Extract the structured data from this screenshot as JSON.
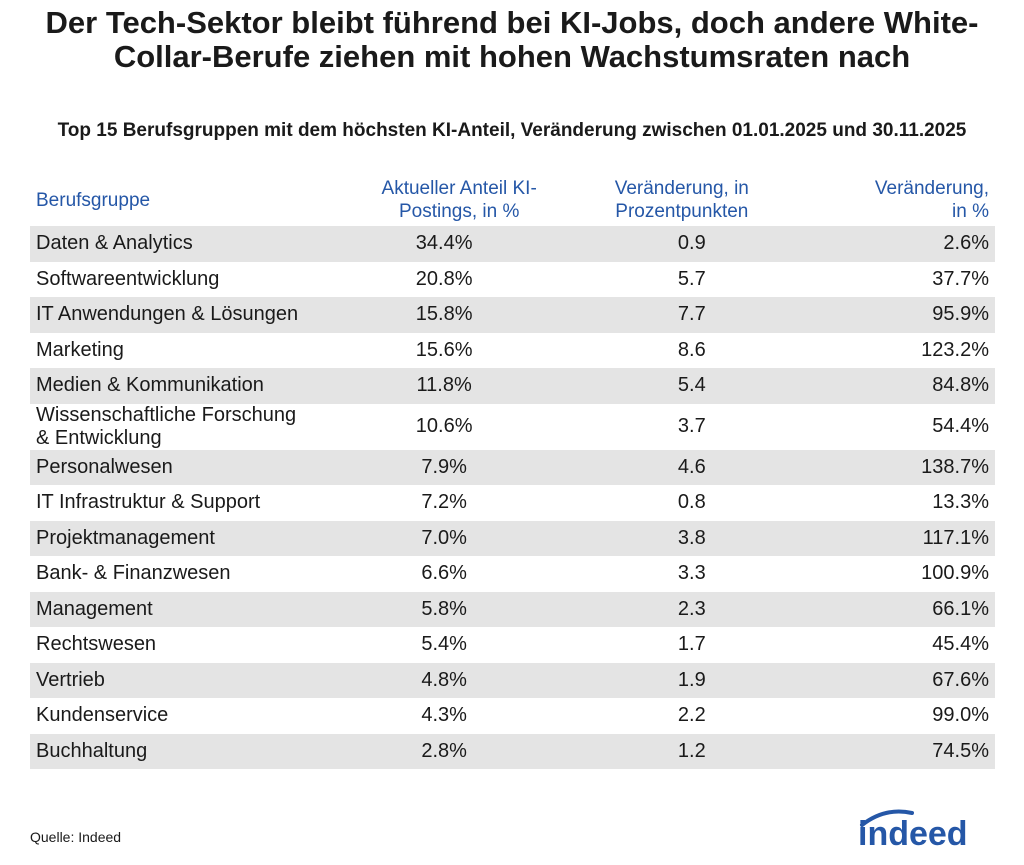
{
  "header": {
    "title": "Der Tech-Sektor bleibt führend bei KI-Jobs, doch andere White-Collar-Berufe ziehen mit hohen Wachstumsraten nach",
    "subtitle": "Top 15 Berufsgruppen mit dem höchsten KI-Anteil, Veränderung zwischen 01.01.2025 und 30.11.2025"
  },
  "table": {
    "columns": [
      "Berufsgruppe",
      "Aktueller Anteil KI-Postings, in %",
      "Veränderung, in Prozentpunkten",
      "Veränderung, in %"
    ],
    "rows": [
      [
        "Daten & Analytics",
        "34.4%",
        "0.9",
        "2.6%"
      ],
      [
        "Softwareentwicklung",
        "20.8%",
        "5.7",
        "37.7%"
      ],
      [
        "IT Anwendungen & Lösungen",
        "15.8%",
        "7.7",
        "95.9%"
      ],
      [
        "Marketing",
        "15.6%",
        "8.6",
        "123.2%"
      ],
      [
        "Medien & Kommunikation",
        "11.8%",
        "5.4",
        "84.8%"
      ],
      [
        "Wissenschaftliche Forschung & Entwicklung",
        "10.6%",
        "3.7",
        "54.4%"
      ],
      [
        "Personalwesen",
        "7.9%",
        "4.6",
        "138.7%"
      ],
      [
        "IT Infrastruktur & Support",
        "7.2%",
        "0.8",
        "13.3%"
      ],
      [
        "Projektmanagement",
        "7.0%",
        "3.8",
        "117.1%"
      ],
      [
        "Bank- & Finanzwesen",
        "6.6%",
        "3.3",
        "100.9%"
      ],
      [
        "Management",
        "5.8%",
        "2.3",
        "66.1%"
      ],
      [
        "Rechtswesen",
        "5.4%",
        "1.7",
        "45.4%"
      ],
      [
        "Vertrieb",
        "4.8%",
        "1.9",
        "67.6%"
      ],
      [
        "Kundenservice",
        "4.3%",
        "2.2",
        "99.0%"
      ],
      [
        "Buchhaltung",
        "2.8%",
        "1.2",
        "74.5%"
      ]
    ]
  },
  "footer": {
    "source": "Quelle: Indeed",
    "logo": "indeed"
  }
}
